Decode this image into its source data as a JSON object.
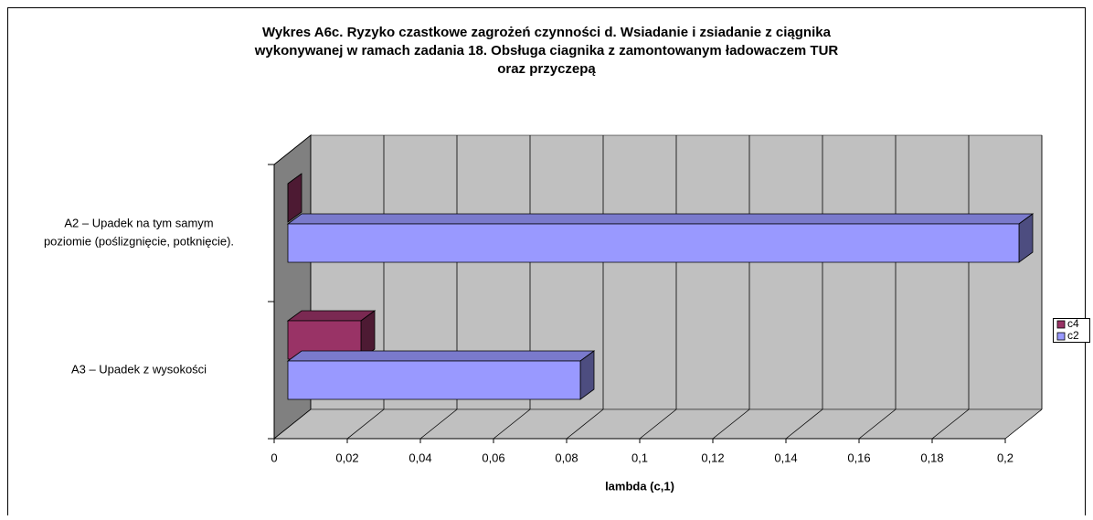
{
  "chart_data": {
    "type": "bar3d",
    "title": [
      "Wykres A6c. Ryzyko czastkowe zagrożeń czynności d. Wsiadanie i zsiadanie z ciągnika",
      "wykonywanej w ramach zadania 18. Obsługa ciagnika z zamontowanym ładowaczem TUR",
      "oraz przyczepą"
    ],
    "x_label": "lambda (c,1)",
    "categories": [
      [
        "A2 – Upadek na tym samym",
        "poziomie (poślizgnięcie, potknięcie)."
      ],
      [
        "A3 – Upadek z wysokości"
      ]
    ],
    "series": [
      {
        "name": "c4",
        "color": "#993366",
        "values": [
          0,
          0.02
        ]
      },
      {
        "name": "c2",
        "color": "#9999ff",
        "values": [
          0.2,
          0.08
        ]
      }
    ],
    "xlim": [
      0,
      0.2
    ],
    "xticks": [
      0,
      {
        "value": 0.02,
        "label": "0,02"
      },
      {
        "value": 0.04,
        "label": "0,04"
      },
      {
        "value": 0.06,
        "label": "0,06"
      },
      {
        "value": 0.08,
        "label": "0,08"
      },
      {
        "value": 0.1,
        "label": "0,1"
      },
      {
        "value": 0.12,
        "label": "0,12"
      },
      {
        "value": 0.14,
        "label": "0,14"
      },
      {
        "value": 0.16,
        "label": "0,16"
      },
      {
        "value": 0.18,
        "label": "0,18"
      },
      {
        "value": 0.2,
        "label": "0,2"
      }
    ],
    "grid": true,
    "legend": "right"
  }
}
